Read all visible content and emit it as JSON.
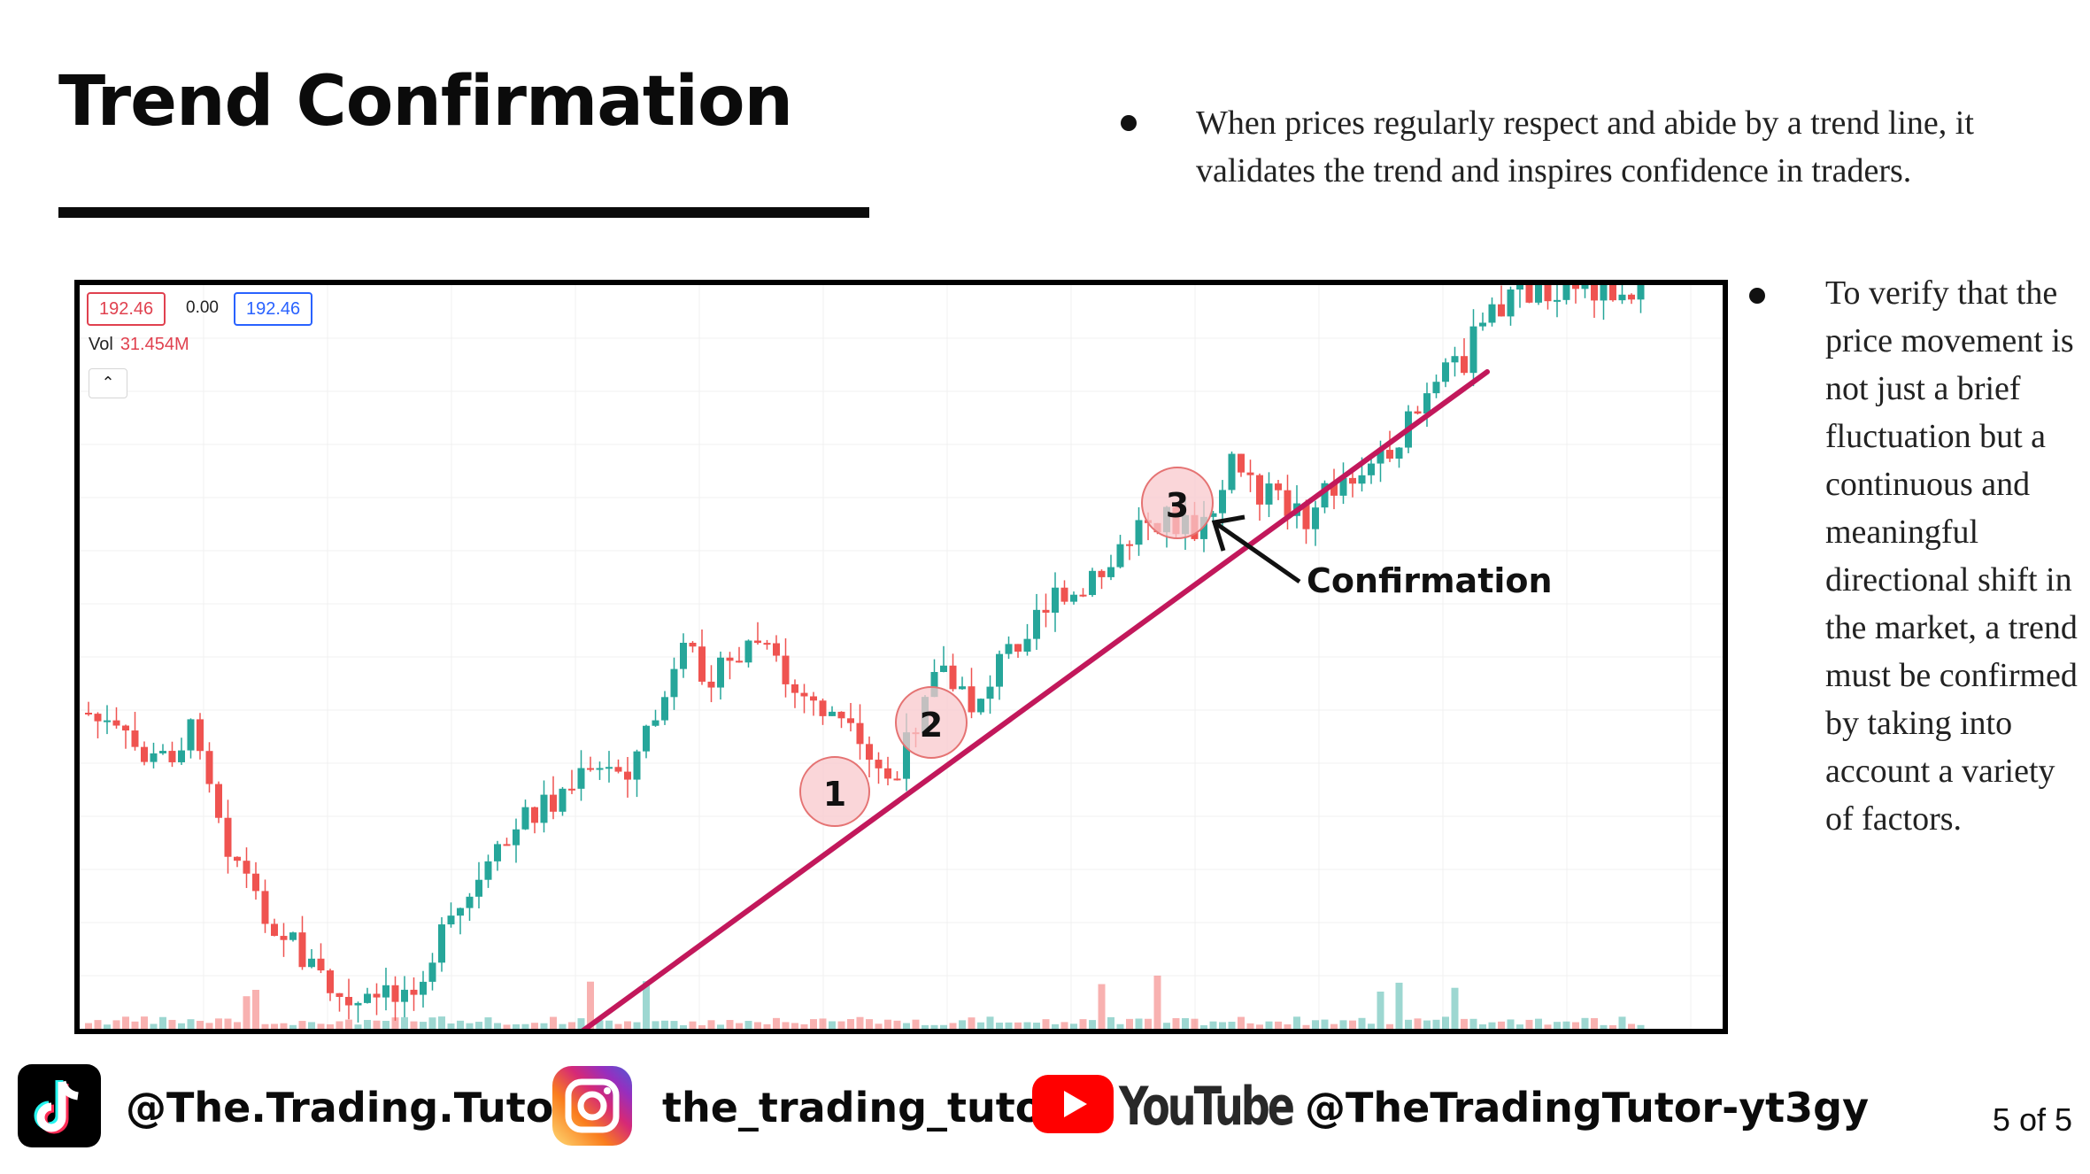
{
  "slide": {
    "title": "Trend Confirmation",
    "bullets": [
      "When prices regularly respect and abide by a trend line, it validates the trend and inspires confidence in traders.",
      "To verify that the price movement is not just a brief fluctuation but a continuous and meaningful directional shift in the market, a trend must be confirmed by taking into account a variety of factors."
    ],
    "page": "5 of 5"
  },
  "chart_header": {
    "price_left": "192.46",
    "change": "0.00",
    "price_right": "192.46",
    "vol_label": "Vol",
    "vol_value": "31.454M",
    "collapse_icon": "chevron-up-icon"
  },
  "annotations": {
    "touch_labels": [
      "1",
      "2",
      "3"
    ],
    "arrow_label": "Confirmation"
  },
  "social": {
    "tiktok": "@The.Trading.Tutor",
    "instagram": "the_trading_tutor",
    "youtube_logo": "YouTube",
    "youtube": "@TheTradingTutor-yt3gy"
  },
  "colors": {
    "up": "#26a69a",
    "down": "#ef5350",
    "trendline": "#c2185b",
    "marker_fill": "#f8c8cc",
    "marker_stroke": "#e57373"
  }
}
